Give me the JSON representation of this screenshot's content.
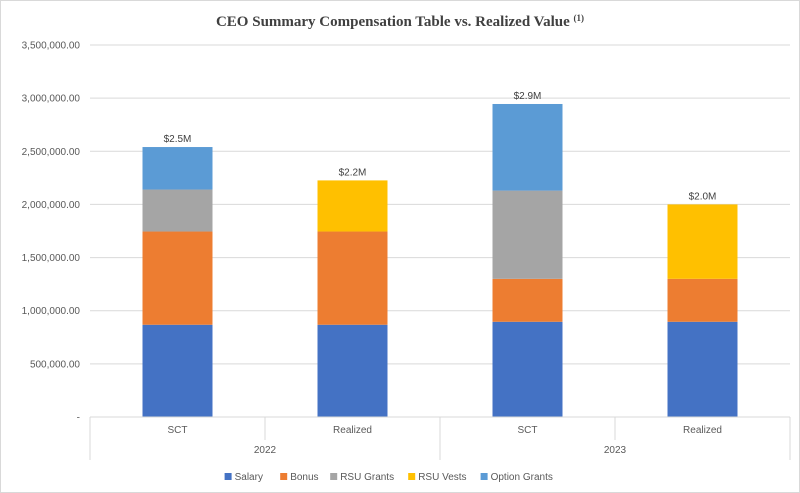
{
  "chart_data": {
    "type": "bar",
    "stacked": true,
    "title": "CEO Summary Compensation Table vs. Realized Value",
    "title_superscript": "(1)",
    "categories": [
      {
        "label": "SCT",
        "group": "2022"
      },
      {
        "label": "Realized",
        "group": "2022"
      },
      {
        "label": "SCT",
        "group": "2023"
      },
      {
        "label": "Realized",
        "group": "2023"
      }
    ],
    "groups": [
      "2022",
      "2023"
    ],
    "series": [
      {
        "name": "Salary",
        "color": "#4472C4",
        "values": [
          868000,
          868000,
          896000,
          896000
        ]
      },
      {
        "name": "Bonus",
        "color": "#ED7D31",
        "values": [
          877000,
          877000,
          404000,
          404000
        ]
      },
      {
        "name": "RSU Grants",
        "color": "#A5A5A5",
        "values": [
          395000,
          0,
          830000,
          0
        ]
      },
      {
        "name": "RSU Vests",
        "color": "#FFC000",
        "values": [
          0,
          481000,
          0,
          700000
        ]
      },
      {
        "name": "Option Grants",
        "color": "#5B9BD5",
        "values": [
          400000,
          0,
          815000,
          0
        ]
      }
    ],
    "total_labels": [
      "$2.5M",
      "$2.2M",
      "$2.9M",
      "$2.0M"
    ],
    "ylim": [
      0,
      3500000
    ],
    "yticks": [
      0,
      500000,
      1000000,
      1500000,
      2000000,
      2500000,
      3000000,
      3500000
    ],
    "ytick_labels": [
      "-",
      "500,000.00",
      "1,000,000.00",
      "1,500,000.00",
      "2,000,000.00",
      "2,500,000.00",
      "3,000,000.00",
      "3,500,000.00"
    ],
    "xlabel": "",
    "ylabel": "",
    "grid": true,
    "legend_position": "bottom"
  }
}
